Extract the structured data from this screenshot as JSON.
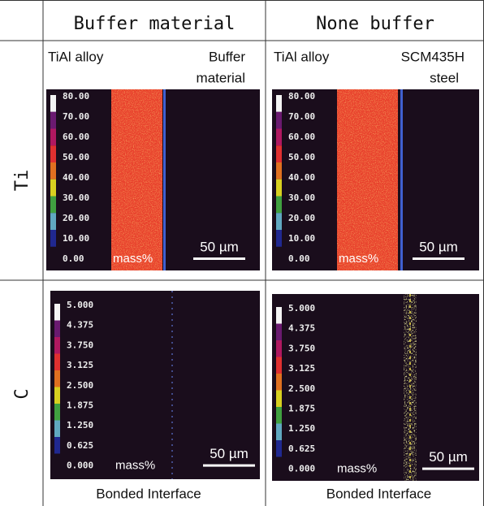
{
  "header": {
    "columns": [
      "Buffer material",
      "None buffer"
    ]
  },
  "rows": [
    {
      "label": "Ti",
      "scale": [
        "80.00",
        "70.00",
        "60.00",
        "50.00",
        "40.00",
        "30.00",
        "20.00",
        "10.00",
        "0.00"
      ],
      "unit": "mass%",
      "scalebar": "50 µm",
      "panels": [
        {
          "left_label": "TiAl alloy",
          "right_label": [
            "Buffer",
            "material"
          ]
        },
        {
          "left_label": "TiAl alloy",
          "right_label": [
            "SCM435H",
            "steel"
          ]
        }
      ]
    },
    {
      "label": "C",
      "scale": [
        "5.000",
        "4.375",
        "3.750",
        "3.125",
        "2.500",
        "1.875",
        "1.250",
        "0.625",
        "0.000"
      ],
      "unit": "mass%",
      "scalebar": "50 µm",
      "caption": "Bonded Interface"
    }
  ]
}
